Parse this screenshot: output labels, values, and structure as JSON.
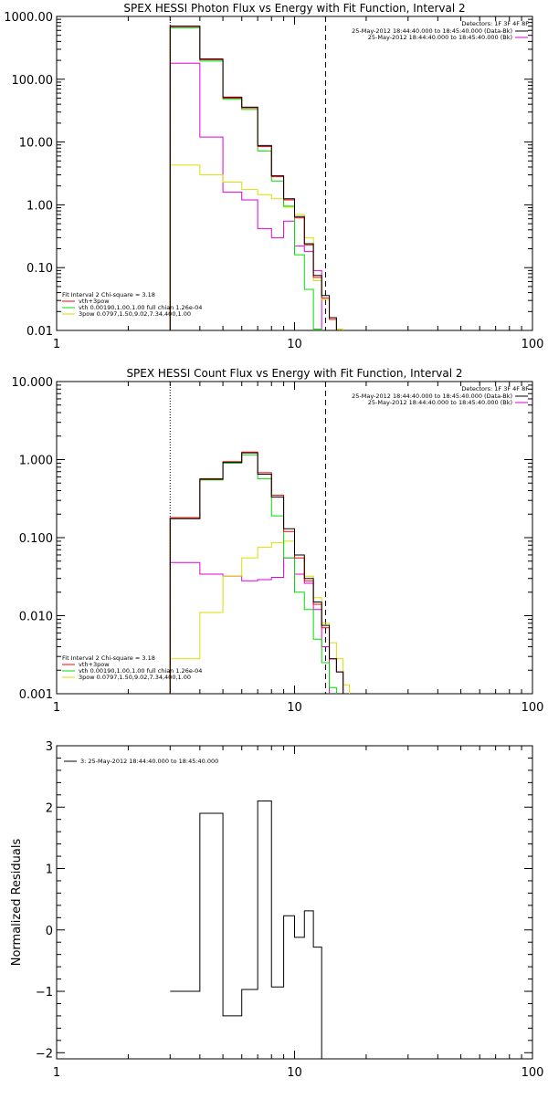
{
  "colors": {
    "total": "#000000",
    "fit": "#ff0000",
    "vth": "#00dd00",
    "pow": "#dddd00",
    "bk": "#dd00dd"
  },
  "chart_data": [
    {
      "type": "line",
      "title": "SPEX HESSI Photon Flux vs Energy with Fit Function, Interval 2",
      "xscale": "log",
      "yscale": "log",
      "xlim": [
        1,
        100
      ],
      "ylim": [
        0.01,
        1000
      ],
      "xticks": [
        "1",
        "10",
        "100"
      ],
      "yticks": [
        "1000.00",
        "100.00",
        "10.00",
        "1.00",
        "0.10",
        "0.01"
      ],
      "vlines": {
        "dotted": 3.0,
        "dashed": 13.5
      },
      "legend_tr": {
        "header": "Detectors: 1F 3F 4F 8F",
        "lines": [
          "25-May-2012 18:44:40.000 to 18:45:40.000 (Data-Bk)",
          "25-May-2012 18:44:40.000 to 18:45:40.000 (Bk)"
        ]
      },
      "legend_bl": {
        "header": "Fit Interval 2   Chi-square = 3.18",
        "lines": [
          "vth+3pow",
          "vth 0.00190,1.00,1.00  full chian 1.26e-04",
          "3pow 0.0797,1.50,9.02,7.34,400,1.00"
        ]
      },
      "edges": [
        3.0,
        4.0,
        5.0,
        6.0,
        7.0,
        8.0,
        9.0,
        10.0,
        11.0,
        12.0,
        13.0,
        14.0,
        15.0,
        16.0
      ],
      "series": [
        {
          "name": "Data-Bk",
          "color": "total",
          "values": [
            700,
            210,
            52,
            36,
            8.8,
            2.9,
            1.25,
            0.65,
            0.24,
            0.075,
            0.036,
            0.016,
            null
          ]
        },
        {
          "name": "vth+3pow",
          "color": "fit",
          "values": [
            690,
            205,
            50,
            35,
            8.5,
            2.8,
            1.2,
            0.62,
            0.23,
            0.07,
            0.033,
            0.015,
            null
          ]
        },
        {
          "name": "vth",
          "color": "vth",
          "values": [
            660,
            195,
            48,
            33,
            7.2,
            2.4,
            0.95,
            0.16,
            0.045,
            0.0105,
            null,
            null,
            null
          ]
        },
        {
          "name": "3pow",
          "color": "pow",
          "values": [
            4.3,
            3.0,
            2.3,
            1.75,
            1.45,
            1.25,
            0.92,
            0.7,
            0.3,
            0.062,
            0.031,
            0.016,
            0.0105
          ]
        },
        {
          "name": "Bk",
          "color": "bk",
          "values": [
            180,
            12,
            1.6,
            1.2,
            0.42,
            0.3,
            0.55,
            0.22,
            0.18,
            0.09,
            null,
            null,
            null
          ]
        }
      ]
    },
    {
      "type": "line",
      "title": "SPEX HESSI Count Flux vs Energy with Fit Function, Interval 2",
      "xscale": "log",
      "yscale": "log",
      "xlim": [
        1,
        100
      ],
      "ylim": [
        0.001,
        10
      ],
      "xticks": [
        "1",
        "10",
        "100"
      ],
      "yticks": [
        "10.000",
        "1.000",
        "0.100",
        "0.010",
        "0.001"
      ],
      "vlines": {
        "dotted": 3.0,
        "dashed": 13.5
      },
      "legend_tr": {
        "header": "Detectors: 1F 3F 4F 8F",
        "lines": [
          "25-May-2012 18:44:40.000 to 18:45:40.000 (Data-Bk)",
          "25-May-2012 18:44:40.000 to 18:45:40.000 (Bk)"
        ]
      },
      "legend_bl": {
        "header": "Fit Interval 2   Chi-square = 3.18",
        "lines": [
          "vth+3pow",
          "vth 0.00190,1.00,1.00  full chian 1.26e-04",
          "3pow 0.0797,1.50,9.02,7.34,400,1.00"
        ]
      },
      "edges": [
        3.0,
        4.0,
        5.0,
        6.0,
        7.0,
        8.0,
        9.0,
        10.0,
        11.0,
        12.0,
        13.0,
        14.0,
        15.0,
        16.0,
        17.0
      ],
      "series": [
        {
          "name": "Data-Bk",
          "color": "total",
          "values": [
            0.175,
            0.56,
            0.92,
            1.22,
            0.65,
            0.33,
            0.13,
            0.06,
            0.03,
            0.015,
            0.0075,
            0.0028,
            0.0019,
            null
          ]
        },
        {
          "name": "vth+3pow",
          "color": "fit",
          "values": [
            0.18,
            0.57,
            0.94,
            1.25,
            0.68,
            0.35,
            0.12,
            0.055,
            0.028,
            0.014,
            0.007,
            0.0028,
            0.0019,
            null
          ]
        },
        {
          "name": "vth",
          "color": "vth",
          "values": [
            0.18,
            0.55,
            0.9,
            1.15,
            0.57,
            0.19,
            0.055,
            0.02,
            0.012,
            0.005,
            0.0025,
            0.0012,
            null,
            null
          ]
        },
        {
          "name": "3pow",
          "color": "pow",
          "values": [
            0.0028,
            0.011,
            0.032,
            0.055,
            0.075,
            0.086,
            0.09,
            0.06,
            0.032,
            0.017,
            0.008,
            0.0045,
            0.0028,
            0.0013
          ]
        },
        {
          "name": "Bk",
          "color": "bk",
          "values": [
            0.048,
            0.034,
            0.032,
            0.028,
            0.029,
            0.031,
            0.055,
            0.034,
            0.026,
            0.012,
            0.004,
            null,
            null,
            null
          ]
        }
      ]
    },
    {
      "type": "line",
      "title": "",
      "xscale": "log",
      "yscale": "linear",
      "xlim": [
        1,
        100
      ],
      "ylim": [
        -2.1,
        3
      ],
      "xticks": [
        "1",
        "10",
        "100"
      ],
      "yticks": [
        "3",
        "2",
        "1",
        "0",
        "−1",
        "−2"
      ],
      "ylabel": "Normalized Residuals",
      "legend_tl": "3: 25-May-2012 18:44:40.000 to 18:45:40.000",
      "edges": [
        3.0,
        4.0,
        5.0,
        6.0,
        7.0,
        8.0,
        9.0,
        10.0,
        11.0,
        12.0,
        13.0
      ],
      "series": [
        {
          "name": "residuals",
          "color": "total",
          "values": [
            -1.0,
            1.9,
            -1.4,
            -0.97,
            2.1,
            -0.93,
            0.23,
            -0.12,
            0.31,
            -0.28
          ]
        }
      ]
    }
  ]
}
